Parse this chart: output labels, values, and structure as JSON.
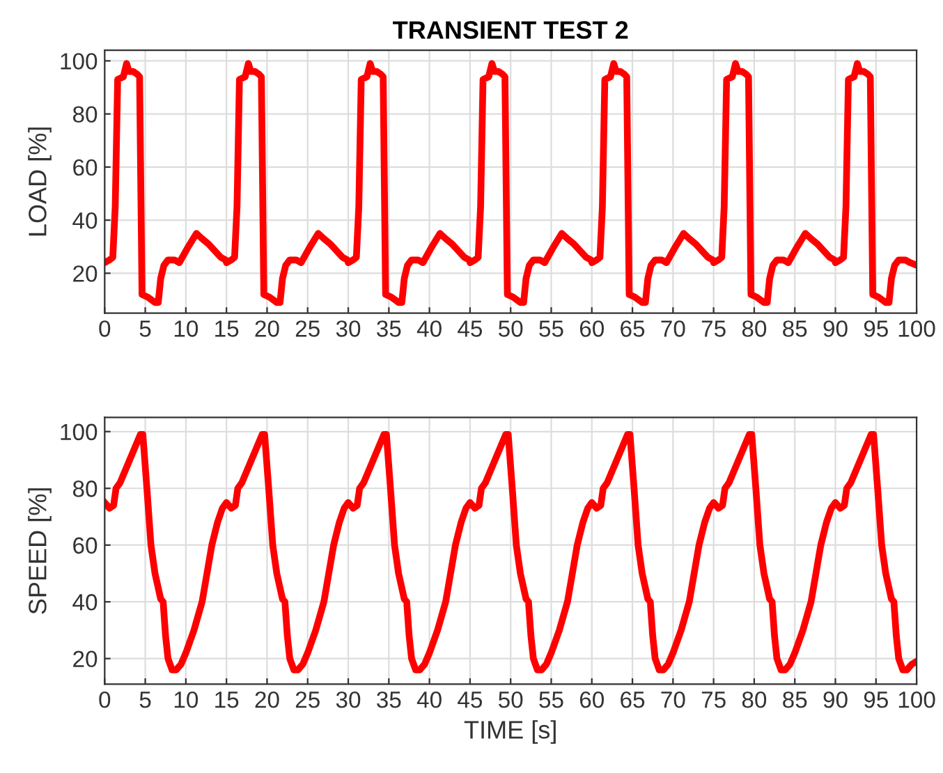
{
  "chart_data": [
    {
      "type": "line",
      "title": "TRANSIENT TEST 2",
      "ylabel": "LOAD [%]",
      "xlim": [
        0,
        100
      ],
      "ylim": [
        5,
        104
      ],
      "xticks": [
        0,
        5,
        10,
        15,
        20,
        25,
        30,
        35,
        40,
        45,
        50,
        55,
        60,
        65,
        70,
        75,
        80,
        85,
        90,
        95,
        100
      ],
      "yticks": [
        20,
        40,
        60,
        80,
        100
      ],
      "grid": true,
      "marker": "none",
      "line_style": "solid",
      "series": [
        {
          "color": "#ff0000",
          "x": [
            0,
            0.6,
            1,
            1.3,
            1.6,
            2.3,
            2.7,
            3,
            3.5,
            4,
            4.3,
            4.6,
            5.3,
            6.2,
            6.6,
            6.9,
            7.3,
            7.8,
            8.6,
            9.2,
            10.3,
            11.3,
            12,
            12.8,
            14.3,
            14.9,
            15,
            15.6,
            16,
            16.3,
            16.6,
            17.3,
            17.7,
            18,
            18.5,
            19,
            19.3,
            19.6,
            20.3,
            21.2,
            21.6,
            21.9,
            22.3,
            22.8,
            23.6,
            24.2,
            25.3,
            26.3,
            27,
            27.8,
            29.3,
            29.9,
            30,
            30.6,
            31,
            31.3,
            31.6,
            32.3,
            32.7,
            33,
            33.5,
            34,
            34.3,
            34.6,
            35.3,
            36.2,
            36.6,
            36.9,
            37.3,
            37.8,
            38.6,
            39.2,
            40.3,
            41.3,
            42,
            42.8,
            44.3,
            44.9,
            45,
            45.6,
            46,
            46.3,
            46.6,
            47.3,
            47.7,
            48,
            48.5,
            49,
            49.3,
            49.6,
            50.3,
            51.2,
            51.6,
            51.9,
            52.3,
            52.8,
            53.6,
            54.2,
            55.3,
            56.3,
            57,
            57.8,
            59.3,
            59.9,
            60,
            60.6,
            61,
            61.3,
            61.6,
            62.3,
            62.7,
            63,
            63.5,
            64,
            64.3,
            64.6,
            65.3,
            66.2,
            66.6,
            66.9,
            67.3,
            67.8,
            68.6,
            69.2,
            70.3,
            71.3,
            72,
            72.8,
            74.3,
            74.9,
            75,
            75.6,
            76,
            76.3,
            76.6,
            77.3,
            77.7,
            78,
            78.5,
            79,
            79.3,
            79.6,
            80.3,
            81.2,
            81.6,
            81.9,
            82.3,
            82.8,
            83.6,
            84.2,
            85.3,
            86.3,
            87,
            87.8,
            89.3,
            89.9,
            90,
            90.6,
            91,
            91.3,
            91.6,
            92.3,
            92.7,
            93,
            93.5,
            94,
            94.3,
            94.6,
            95.3,
            96.2,
            96.6,
            96.9,
            97.3,
            97.8,
            98.6,
            99.2,
            100
          ],
          "values": [
            24,
            25,
            26,
            45,
            93,
            94,
            99,
            96,
            96,
            95,
            94,
            12,
            11,
            9,
            9,
            18,
            23,
            25,
            25,
            24,
            30,
            35,
            33,
            31,
            26,
            25,
            24,
            25,
            26,
            45,
            93,
            94,
            99,
            96,
            96,
            95,
            94,
            12,
            11,
            9,
            9,
            18,
            23,
            25,
            25,
            24,
            30,
            35,
            33,
            31,
            26,
            25,
            24,
            25,
            26,
            45,
            93,
            94,
            99,
            96,
            96,
            95,
            94,
            12,
            11,
            9,
            9,
            18,
            23,
            25,
            25,
            24,
            30,
            35,
            33,
            31,
            26,
            25,
            24,
            25,
            26,
            45,
            93,
            94,
            99,
            96,
            96,
            95,
            94,
            12,
            11,
            9,
            9,
            18,
            23,
            25,
            25,
            24,
            30,
            35,
            33,
            31,
            26,
            25,
            24,
            25,
            26,
            45,
            93,
            94,
            99,
            96,
            96,
            95,
            94,
            12,
            11,
            9,
            9,
            18,
            23,
            25,
            25,
            24,
            30,
            35,
            33,
            31,
            26,
            25,
            24,
            25,
            26,
            45,
            93,
            94,
            99,
            96,
            96,
            95,
            94,
            12,
            11,
            9,
            9,
            18,
            23,
            25,
            25,
            24,
            30,
            35,
            33,
            31,
            26,
            25,
            24,
            25,
            26,
            45,
            93,
            94,
            99,
            96,
            96,
            95,
            94,
            12,
            11,
            9,
            9,
            18,
            23,
            25,
            25,
            24,
            23
          ]
        }
      ]
    },
    {
      "type": "line",
      "xlabel": "TIME [s]",
      "ylabel": "SPEED [%]",
      "xlim": [
        0,
        100
      ],
      "ylim": [
        11,
        105
      ],
      "xticks": [
        0,
        5,
        10,
        15,
        20,
        25,
        30,
        35,
        40,
        45,
        50,
        55,
        60,
        65,
        70,
        75,
        80,
        85,
        90,
        95,
        100
      ],
      "yticks": [
        20,
        40,
        60,
        80,
        100
      ],
      "grid": true,
      "marker": "none",
      "line_style": "solid",
      "series": [
        {
          "color": "#ff0000",
          "x": [
            0,
            0.6,
            1.1,
            1.4,
            1.9,
            4.4,
            4.7,
            5.2,
            5.7,
            6.2,
            6.9,
            7.2,
            7.5,
            7.8,
            8.3,
            8.8,
            9.4,
            10,
            11,
            12,
            12.6,
            13.2,
            13.9,
            14.5,
            15,
            15.6,
            16.1,
            16.4,
            16.9,
            19.4,
            19.7,
            20.2,
            20.7,
            21.2,
            21.9,
            22.2,
            22.5,
            22.8,
            23.3,
            23.8,
            24.4,
            25,
            26,
            27,
            27.6,
            28.2,
            28.9,
            29.5,
            30,
            30.6,
            31.1,
            31.4,
            31.9,
            34.4,
            34.7,
            35.2,
            35.7,
            36.2,
            36.9,
            37.2,
            37.5,
            37.8,
            38.3,
            38.8,
            39.4,
            40,
            41,
            42,
            42.6,
            43.2,
            43.9,
            44.5,
            45,
            45.6,
            46.1,
            46.4,
            46.9,
            49.4,
            49.7,
            50.2,
            50.7,
            51.2,
            51.9,
            52.2,
            52.5,
            52.8,
            53.3,
            53.8,
            54.4,
            55,
            56,
            57,
            57.6,
            58.2,
            58.9,
            59.5,
            60,
            60.6,
            61.1,
            61.4,
            61.9,
            64.4,
            64.7,
            65.2,
            65.7,
            66.2,
            66.9,
            67.2,
            67.5,
            67.8,
            68.3,
            68.8,
            69.4,
            70,
            71,
            72,
            72.6,
            73.2,
            73.9,
            74.5,
            75,
            75.6,
            76.1,
            76.4,
            76.9,
            79.4,
            79.7,
            80.2,
            80.7,
            81.2,
            81.9,
            82.2,
            82.5,
            82.8,
            83.3,
            83.8,
            84.4,
            85,
            86,
            87,
            87.6,
            88.2,
            88.9,
            89.5,
            90,
            90.6,
            91.1,
            91.4,
            91.9,
            94.4,
            94.7,
            95.2,
            95.7,
            96.2,
            96.9,
            97.2,
            97.5,
            97.8,
            98.3,
            98.8,
            99.4,
            100
          ],
          "values": [
            75,
            73,
            74,
            80,
            82,
            99,
            99,
            80,
            60,
            50,
            41,
            40,
            28,
            20,
            16,
            16,
            18,
            22,
            30,
            40,
            50,
            60,
            68,
            73,
            75,
            73,
            74,
            80,
            82,
            99,
            99,
            80,
            60,
            50,
            41,
            40,
            28,
            20,
            16,
            16,
            18,
            22,
            30,
            40,
            50,
            60,
            68,
            73,
            75,
            73,
            74,
            80,
            82,
            99,
            99,
            80,
            60,
            50,
            41,
            40,
            28,
            20,
            16,
            16,
            18,
            22,
            30,
            40,
            50,
            60,
            68,
            73,
            75,
            73,
            74,
            80,
            82,
            99,
            99,
            80,
            60,
            50,
            41,
            40,
            28,
            20,
            16,
            16,
            18,
            22,
            30,
            40,
            50,
            60,
            68,
            73,
            75,
            73,
            74,
            80,
            82,
            99,
            99,
            80,
            60,
            50,
            41,
            40,
            28,
            20,
            16,
            16,
            18,
            22,
            30,
            40,
            50,
            60,
            68,
            73,
            75,
            73,
            74,
            80,
            82,
            99,
            99,
            80,
            60,
            50,
            41,
            40,
            28,
            20,
            16,
            16,
            18,
            22,
            30,
            40,
            50,
            60,
            68,
            73,
            75,
            73,
            74,
            80,
            82,
            99,
            99,
            80,
            60,
            50,
            41,
            40,
            28,
            20,
            16,
            16,
            18,
            19
          ]
        }
      ]
    }
  ]
}
